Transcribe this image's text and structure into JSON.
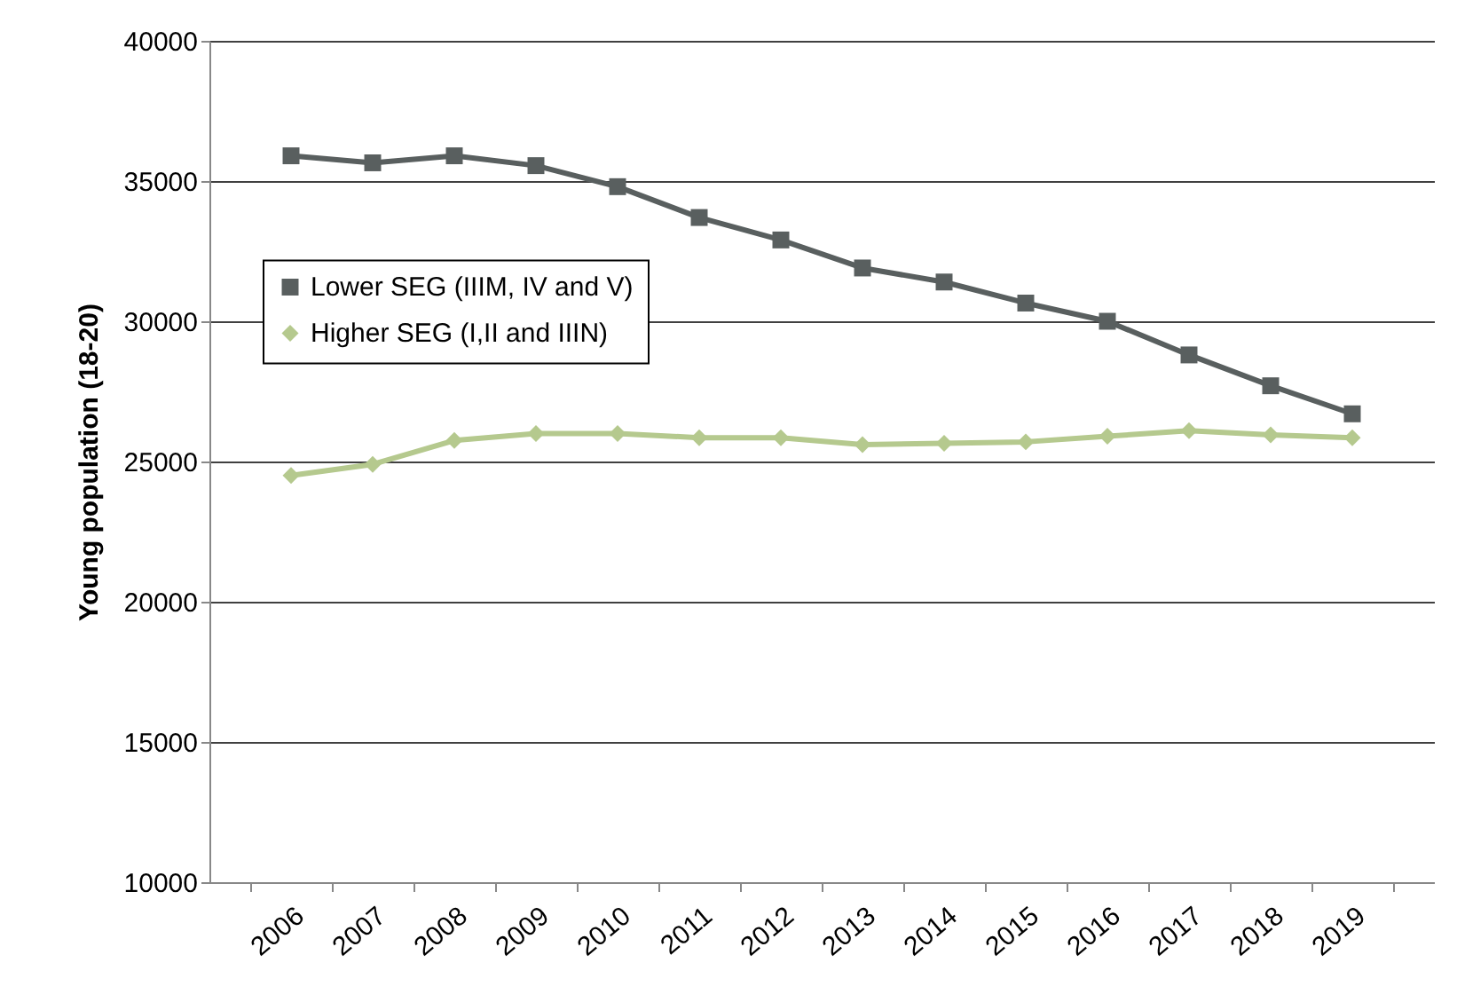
{
  "chart_data": {
    "type": "line",
    "ylabel": "Young population (18-20)",
    "categories": [
      "2006",
      "2007",
      "2008",
      "2009",
      "2010",
      "2011",
      "2012",
      "2013",
      "2014",
      "2015",
      "2016",
      "2017",
      "2018",
      "2019"
    ],
    "series": [
      {
        "name": "Lower SEG (IIIM, IV and V)",
        "color": "#595f5f",
        "marker": "square",
        "values": [
          35900,
          35650,
          35900,
          35550,
          34800,
          33700,
          32900,
          31900,
          31400,
          30650,
          30000,
          28800,
          27700,
          26700
        ]
      },
      {
        "name": "Higher SEG (I,II and IIIN)",
        "color": "#b5c98e",
        "marker": "diamond",
        "values": [
          24500,
          24900,
          25750,
          26000,
          26000,
          25850,
          25850,
          25600,
          25650,
          25700,
          25900,
          26100,
          25950,
          25850
        ]
      }
    ],
    "ylim": [
      10000,
      40000
    ],
    "yticks": [
      10000,
      15000,
      20000,
      25000,
      30000,
      35000,
      40000
    ],
    "grid": "y",
    "legend": "left",
    "line_style": "solid"
  }
}
